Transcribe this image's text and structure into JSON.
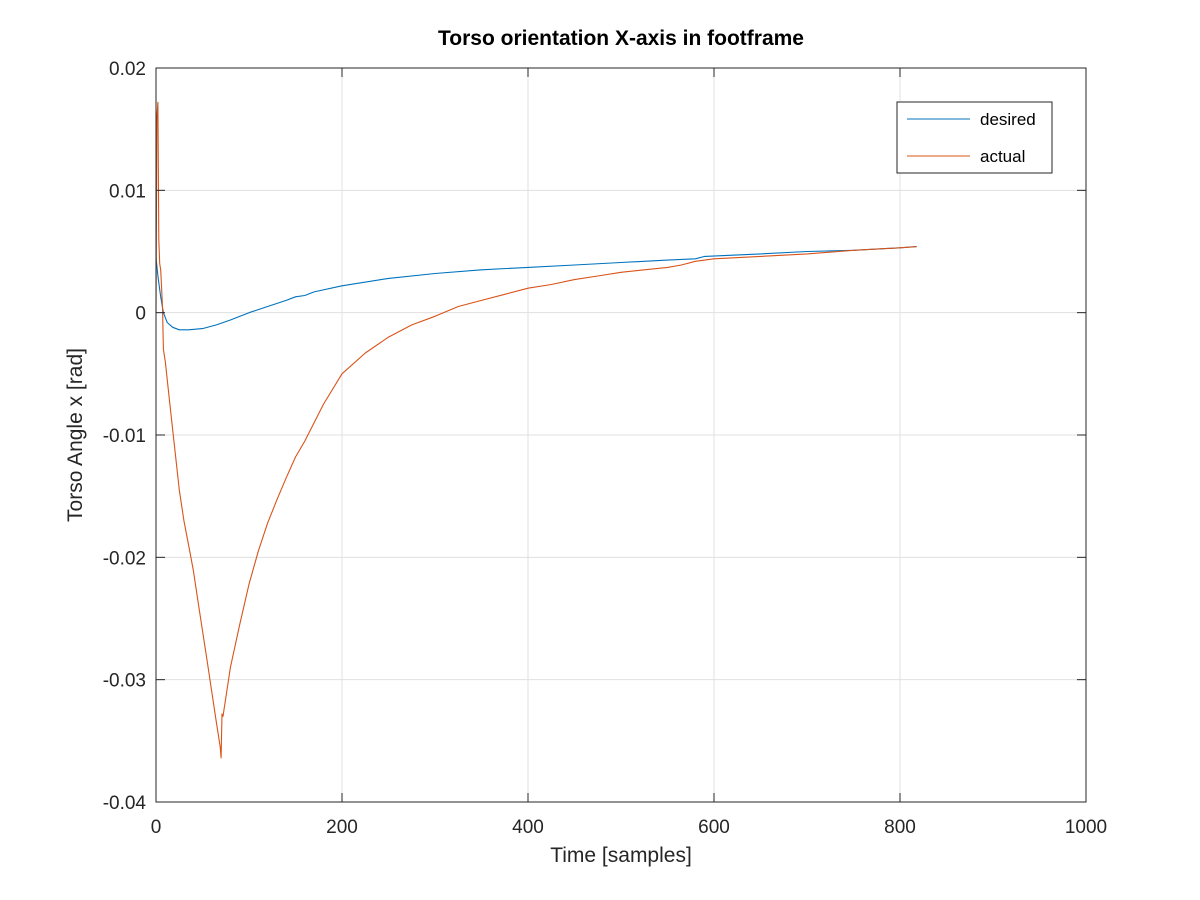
{
  "chart_data": {
    "type": "line",
    "title": "Torso orientation X-axis in footframe",
    "xlabel": "Time [samples]",
    "ylabel": "Torso Angle x [rad]",
    "xlim": [
      0,
      1000
    ],
    "ylim": [
      -0.04,
      0.02
    ],
    "xticks": [
      0,
      200,
      400,
      600,
      800,
      1000
    ],
    "xtick_labels": [
      "0",
      "200",
      "400",
      "600",
      "800",
      "1000"
    ],
    "yticks": [
      -0.04,
      -0.03,
      -0.02,
      -0.01,
      0,
      0.01,
      0.02
    ],
    "ytick_labels": [
      "-0.04",
      "-0.03",
      "-0.02",
      "-0.01",
      "0",
      "0.01",
      "0.02"
    ],
    "grid": true,
    "legend_position": "top-right",
    "series": [
      {
        "name": "desired",
        "color": "#0072BD",
        "points": [
          [
            0,
            0.0045
          ],
          [
            2,
            0.003
          ],
          [
            5,
            0.0013
          ],
          [
            8,
            0.0
          ],
          [
            12,
            -0.0008
          ],
          [
            18,
            -0.0012
          ],
          [
            25,
            -0.0014
          ],
          [
            35,
            -0.0014
          ],
          [
            50,
            -0.0013
          ],
          [
            65,
            -0.001
          ],
          [
            80,
            -0.0006
          ],
          [
            100,
            0.0
          ],
          [
            120,
            0.0005
          ],
          [
            140,
            0.001
          ],
          [
            150,
            0.0013
          ],
          [
            160,
            0.0014
          ],
          [
            170,
            0.0017
          ],
          [
            200,
            0.0022
          ],
          [
            250,
            0.0028
          ],
          [
            300,
            0.0032
          ],
          [
            350,
            0.0035
          ],
          [
            400,
            0.0037
          ],
          [
            450,
            0.0039
          ],
          [
            500,
            0.0041
          ],
          [
            550,
            0.0043
          ],
          [
            580,
            0.0044
          ],
          [
            590,
            0.0046
          ],
          [
            650,
            0.0048
          ],
          [
            700,
            0.005
          ],
          [
            750,
            0.0051
          ],
          [
            800,
            0.0053
          ],
          [
            818,
            0.0054
          ]
        ]
      },
      {
        "name": "actual",
        "color": "#D95319",
        "points": [
          [
            0,
            0.0
          ],
          [
            1,
            0.016
          ],
          [
            2,
            0.0172
          ],
          [
            3,
            0.006
          ],
          [
            4,
            0.004
          ],
          [
            5,
            0.0035
          ],
          [
            7,
            0.0005
          ],
          [
            8,
            -0.003
          ],
          [
            10,
            -0.004
          ],
          [
            15,
            -0.0075
          ],
          [
            20,
            -0.011
          ],
          [
            25,
            -0.0145
          ],
          [
            30,
            -0.017
          ],
          [
            35,
            -0.019
          ],
          [
            40,
            -0.021
          ],
          [
            45,
            -0.0235
          ],
          [
            50,
            -0.026
          ],
          [
            55,
            -0.0285
          ],
          [
            60,
            -0.031
          ],
          [
            65,
            -0.0335
          ],
          [
            69,
            -0.0355
          ],
          [
            70,
            -0.0364
          ],
          [
            71,
            -0.0328
          ],
          [
            72,
            -0.033
          ],
          [
            73,
            -0.0325
          ],
          [
            80,
            -0.029
          ],
          [
            90,
            -0.0255
          ],
          [
            100,
            -0.0222
          ],
          [
            110,
            -0.0195
          ],
          [
            120,
            -0.0172
          ],
          [
            130,
            -0.0153
          ],
          [
            140,
            -0.0135
          ],
          [
            150,
            -0.0118
          ],
          [
            160,
            -0.0105
          ],
          [
            180,
            -0.0075
          ],
          [
            200,
            -0.005
          ],
          [
            225,
            -0.0033
          ],
          [
            250,
            -0.002
          ],
          [
            275,
            -0.001
          ],
          [
            300,
            -0.0003
          ],
          [
            325,
            0.0005
          ],
          [
            350,
            0.001
          ],
          [
            375,
            0.0015
          ],
          [
            400,
            0.002
          ],
          [
            425,
            0.0023
          ],
          [
            450,
            0.0027
          ],
          [
            475,
            0.003
          ],
          [
            500,
            0.0033
          ],
          [
            525,
            0.0035
          ],
          [
            550,
            0.0037
          ],
          [
            565,
            0.0039
          ],
          [
            580,
            0.0042
          ],
          [
            600,
            0.0044
          ],
          [
            650,
            0.0046
          ],
          [
            700,
            0.0048
          ],
          [
            750,
            0.0051
          ],
          [
            800,
            0.0053
          ],
          [
            818,
            0.0054
          ]
        ]
      }
    ]
  }
}
